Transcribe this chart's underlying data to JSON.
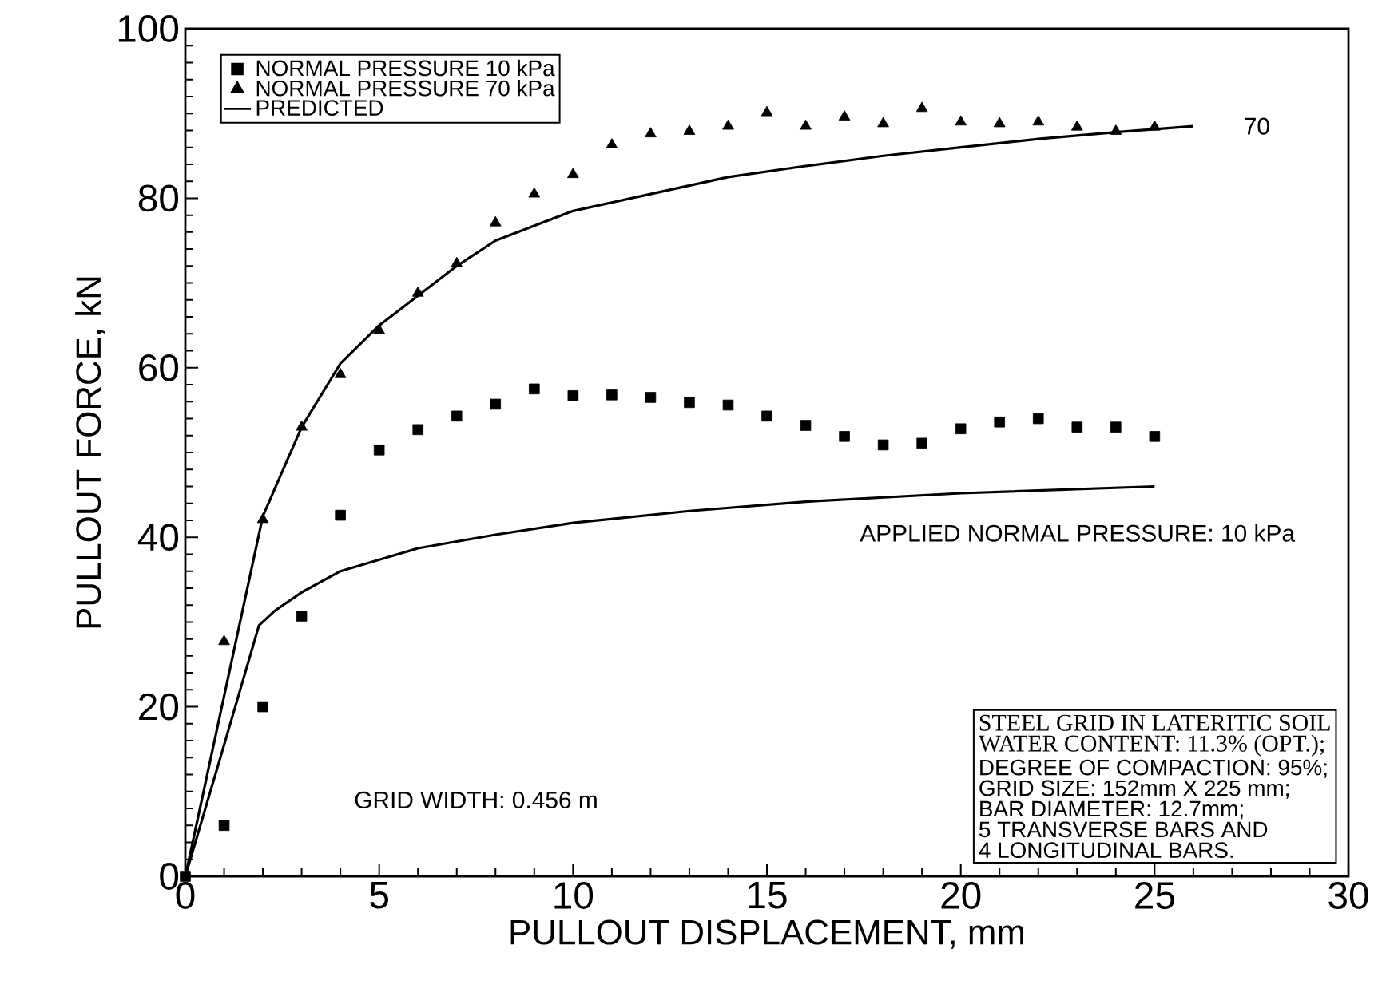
{
  "chart_data": {
    "type": "scatter",
    "xlabel": "PULLOUT DISPLACEMENT, mm",
    "ylabel": "PULLOUT FORCE, kN",
    "x": [
      0,
      1,
      2,
      3,
      4,
      5,
      6,
      7,
      8,
      9,
      10,
      11,
      12,
      13,
      14,
      15,
      16,
      17,
      18,
      19,
      20,
      21,
      22,
      23,
      24,
      25
    ],
    "series": [
      {
        "name": "NORMAL PRESSURE 10 kPa",
        "marker": "square",
        "color": "#000000",
        "values": [
          0,
          6.0,
          20.0,
          30.7,
          42.6,
          50.3,
          52.7,
          54.3,
          55.7,
          57.5,
          56.7,
          56.8,
          56.5,
          55.9,
          55.6,
          54.3,
          53.2,
          51.9,
          50.9,
          51.1,
          52.8,
          53.6,
          54.0,
          53.0,
          53.0,
          51.9
        ]
      },
      {
        "name": "NORMAL PRESSURE 70 kPa",
        "marker": "triangle",
        "color": "#000000",
        "values": [
          null,
          27.7,
          42.1,
          53.0,
          59.2,
          64.4,
          68.8,
          72.3,
          77.1,
          80.5,
          82.8,
          86.3,
          87.6,
          87.9,
          88.5,
          90.1,
          88.5,
          89.6,
          88.8,
          90.6,
          89.0,
          88.8,
          89.0,
          88.4,
          87.9,
          88.4
        ]
      },
      {
        "name": "PREDICTED",
        "type": "line",
        "line_style": "solid",
        "color": "#000000",
        "x": [
          0,
          2,
          3,
          4,
          5,
          6,
          7,
          8,
          10,
          12,
          14,
          16,
          18,
          20,
          22,
          24,
          26
        ],
        "values": [
          0,
          42.5,
          53,
          60.5,
          65,
          68.5,
          72,
          75,
          78.5,
          80.5,
          82.5,
          83.8,
          85,
          86,
          87,
          87.8,
          88.5
        ]
      },
      {
        "type": "line",
        "line_style": "solid",
        "color": "#000000",
        "x": [
          0,
          1,
          1.9,
          2.3,
          3,
          4,
          6,
          8,
          10,
          13,
          16,
          20,
          25
        ],
        "values": [
          0,
          15.5,
          29.6,
          31.3,
          33.5,
          36,
          38.7,
          40.3,
          41.7,
          43.1,
          44.2,
          45.2,
          46
        ]
      }
    ],
    "xlim": [
      0,
      30
    ],
    "ylim": [
      0,
      100
    ],
    "xticks": [
      0,
      5,
      10,
      15,
      20,
      25,
      30
    ],
    "yticks": [
      0,
      20,
      40,
      60,
      80,
      100
    ],
    "legend": "top left",
    "grid": false,
    "annotations": [
      "70",
      "APPLIED NORMAL PRESSURE: 10 kPa",
      "GRID WIDTH: 0.456 m",
      "STEEL GRID IN LATERITIC SOIL",
      "WATER CONTENT: 11.3% (OPT.);",
      "DEGREE OF COMPACTION: 95%;",
      "GRID SIZE: 152mm X 225 mm;",
      "BAR DIAMETER: 12.7mm;",
      "5 TRANSVERSE BARS AND",
      "4 LONGITUDINAL BARS."
    ]
  }
}
